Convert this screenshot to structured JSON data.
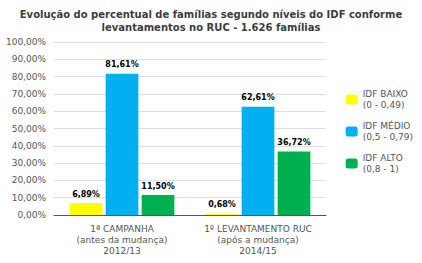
{
  "chart_data": {
    "type": "bar",
    "title": "Evolução do percentual de famílias segundo níveis do IDF conforme\nlevantamentos no RUC - 1.626 famílias",
    "categories": [
      "1ª CAMPANHA\n(antes da mudança)\n2012/13",
      "1º LEVANTAMENTO RUC\n(após a mudança)\n2014/15"
    ],
    "series": [
      {
        "name": "IDF BAIXO\n(0 - 0,49)",
        "color": "#FFFF00",
        "values": [
          6.89,
          0.68
        ],
        "value_labels": [
          "6,89%",
          "0,68%"
        ]
      },
      {
        "name": "IDF MÉDIO\n(0,5 - 0,79)",
        "color": "#00B0F0",
        "values": [
          81.61,
          62.61
        ],
        "value_labels": [
          "81,61%",
          "62,61%"
        ]
      },
      {
        "name": "IDF ALTO\n(0,8 - 1)",
        "color": "#00B050",
        "values": [
          11.5,
          36.72
        ],
        "value_labels": [
          "11,50%",
          "36,72%"
        ]
      }
    ],
    "ylim": [
      0,
      100
    ],
    "yticks": [
      {
        "value": 0,
        "label": "0,00%"
      },
      {
        "value": 10,
        "label": "10,00%"
      },
      {
        "value": 20,
        "label": "20,00%"
      },
      {
        "value": 30,
        "label": "30,00%"
      },
      {
        "value": 40,
        "label": "40,00%"
      },
      {
        "value": 50,
        "label": "50,00%"
      },
      {
        "value": 60,
        "label": "60,00%"
      },
      {
        "value": 70,
        "label": "70,00%"
      },
      {
        "value": 80,
        "label": "80,00%"
      },
      {
        "value": 90,
        "label": "90,00%"
      },
      {
        "value": 100,
        "label": "100,00%"
      }
    ],
    "grid": true,
    "legend": "right",
    "data_labels": true
  }
}
